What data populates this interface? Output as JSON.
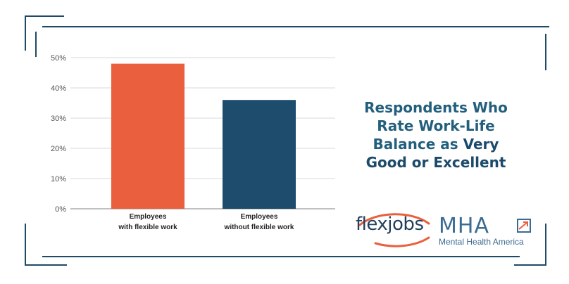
{
  "title": {
    "line1": "Respondents Who",
    "line2": "Rate Work-Life",
    "line3_plain": "Balance as ",
    "line3_highlight": "Very",
    "line4": "Good or Excellent"
  },
  "logos": {
    "flexjobs": "flexjobs",
    "mha_mark": "MHA",
    "mha_name": "Mental Health America"
  },
  "colors": {
    "frame": "#1f4a66",
    "bar_flexible": "#ea5f3d",
    "bar_without": "#1e4c6d",
    "title": "#235f7d",
    "grid": "#d8d8d8"
  },
  "chart_data": {
    "type": "bar",
    "categories": [
      [
        "Employees",
        "with flexible work"
      ],
      [
        "Employees",
        "without flexible work"
      ]
    ],
    "values": [
      48,
      36
    ],
    "yticks": [
      "0%",
      "10%",
      "20%",
      "30%",
      "40%",
      "50%"
    ],
    "ylim": [
      0,
      50
    ],
    "grid": true,
    "title": "",
    "xlabel": "",
    "ylabel": ""
  }
}
